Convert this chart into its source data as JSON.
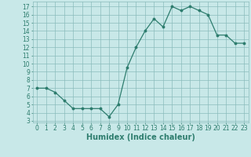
{
  "x": [
    0,
    1,
    2,
    3,
    4,
    5,
    6,
    7,
    8,
    9,
    10,
    11,
    12,
    13,
    14,
    15,
    16,
    17,
    18,
    19,
    20,
    21,
    22,
    23
  ],
  "y": [
    7.0,
    7.0,
    6.5,
    5.5,
    4.5,
    4.5,
    4.5,
    4.5,
    3.5,
    5.0,
    9.5,
    12.0,
    14.0,
    15.5,
    14.5,
    17.0,
    16.5,
    17.0,
    16.5,
    16.0,
    13.5,
    13.5,
    12.5,
    12.5
  ],
  "line_color": "#2e7d6e",
  "marker_color": "#2e7d6e",
  "bg_color": "#c8e8e8",
  "grid_color": "#8bbcbc",
  "xlabel": "Humidex (Indice chaleur)",
  "xlim": [
    -0.5,
    23.5
  ],
  "ylim": [
    2.8,
    17.6
  ],
  "yticks": [
    3,
    4,
    5,
    6,
    7,
    8,
    9,
    10,
    11,
    12,
    13,
    14,
    15,
    16,
    17
  ],
  "xticks": [
    0,
    1,
    2,
    3,
    4,
    5,
    6,
    7,
    8,
    9,
    10,
    11,
    12,
    13,
    14,
    15,
    16,
    17,
    18,
    19,
    20,
    21,
    22,
    23
  ],
  "tick_fontsize": 5.5,
  "label_fontsize": 7.0
}
